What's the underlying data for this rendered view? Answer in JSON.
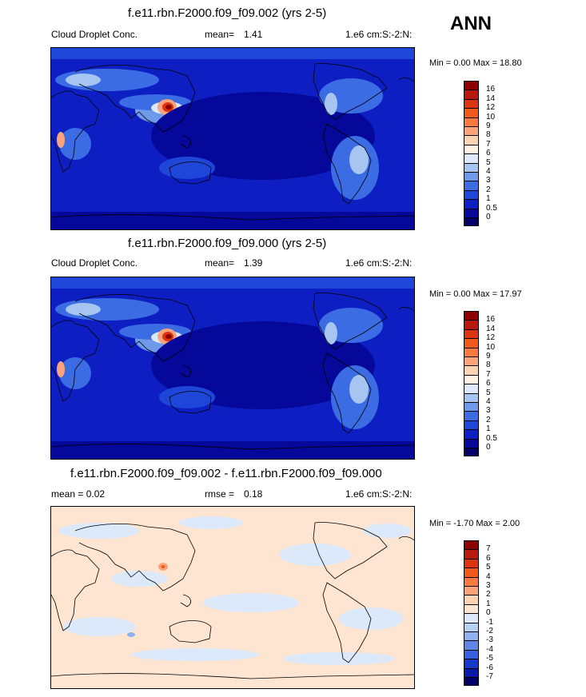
{
  "season": "ANN",
  "panels": [
    {
      "title": "f.e11.rbn.F2000.f09_f09.002 (yrs 2-5)",
      "left_label": "Cloud Droplet Conc.",
      "mean_label": "mean=",
      "mean_value": "1.41",
      "units": "1.e6 cm:S:-2:N:",
      "minmax": "Min =   0.00 Max =  18.80",
      "colorbar": {
        "labels": [
          "16",
          "14",
          "12",
          "10",
          "9",
          "8",
          "7",
          "6",
          "5",
          "4",
          "3",
          "2",
          "1",
          "0.5",
          "0"
        ],
        "colors": [
          "#8b0000",
          "#b71a0c",
          "#dc3311",
          "#f05a1d",
          "#fb7a3f",
          "#fba37a",
          "#fdd3b3",
          "#fff2e3",
          "#dce9fb",
          "#a7c5f1",
          "#6f9aea",
          "#3c6ce4",
          "#1e46d8",
          "#0d1fc2",
          "#050898",
          "#000066"
        ]
      },
      "map_style": "control"
    },
    {
      "title": "f.e11.rbn.F2000.f09_f09.000 (yrs 2-5)",
      "left_label": "Cloud Droplet Conc.",
      "mean_label": "mean=",
      "mean_value": "1.39",
      "units": "1.e6 cm:S:-2:N:",
      "minmax": "Min =   0.00 Max =  17.97",
      "colorbar": {
        "labels": [
          "16",
          "14",
          "12",
          "10",
          "9",
          "8",
          "7",
          "6",
          "5",
          "4",
          "3",
          "2",
          "1",
          "0.5",
          "0"
        ],
        "colors": [
          "#8b0000",
          "#b71a0c",
          "#dc3311",
          "#f05a1d",
          "#fb7a3f",
          "#fba37a",
          "#fdd3b3",
          "#fff2e3",
          "#dce9fb",
          "#a7c5f1",
          "#6f9aea",
          "#3c6ce4",
          "#1e46d8",
          "#0d1fc2",
          "#050898",
          "#000066"
        ]
      },
      "map_style": "control"
    },
    {
      "title": "f.e11.rbn.F2000.f09_f09.002 - f.e11.rbn.F2000.f09_f09.000",
      "left_label": "mean =   0.02",
      "mean_label": "rmse =",
      "mean_value": "0.18",
      "units": "1.e6 cm:S:-2:N:",
      "minmax": "Min =  -1.70 Max =   2.00",
      "colorbar": {
        "labels": [
          "7",
          "6",
          "5",
          "4",
          "3",
          "2",
          "1",
          "0",
          "-1",
          "-2",
          "-3",
          "-4",
          "-5",
          "-6",
          "-7"
        ],
        "colors": [
          "#8b0000",
          "#b71a0c",
          "#dc3311",
          "#f05a1d",
          "#fb7a3f",
          "#fba37a",
          "#fdd3b3",
          "#fde5d2",
          "#dce9fb",
          "#b7d0f5",
          "#8fb1ef",
          "#5f88e6",
          "#3a5fdc",
          "#1838c9",
          "#071aa8",
          "#000066"
        ]
      },
      "map_style": "diff"
    }
  ]
}
